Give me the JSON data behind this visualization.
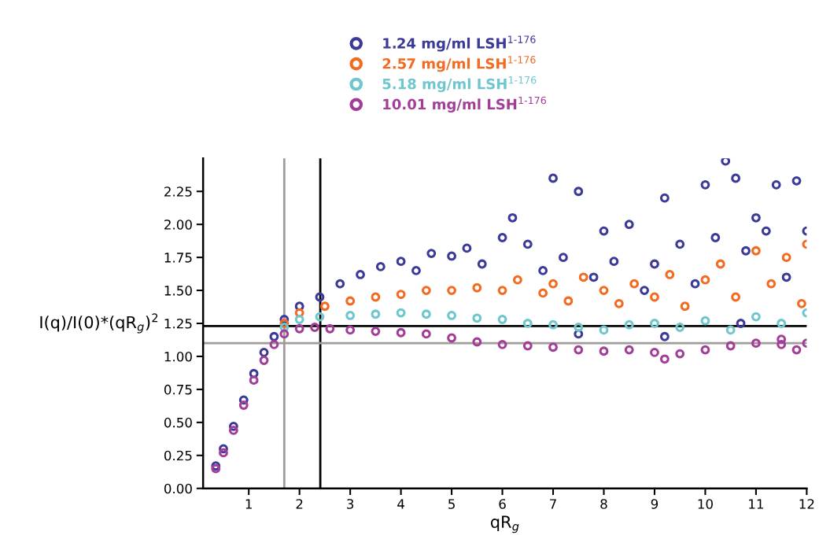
{
  "chart_data": {
    "type": "scatter",
    "xlabel": "qR$_{g}$",
    "ylabel": "I(q)/I(0)*(qR$_{g}$)$^{2}$",
    "xlim": [
      0.1,
      12
    ],
    "xticks": [
      1,
      2,
      3,
      4,
      5,
      6,
      7,
      8,
      9,
      10,
      11,
      12
    ],
    "ylim": [
      0,
      2.5
    ],
    "yticks": [
      {
        "value": 0,
        "label": "0.00"
      },
      0.25,
      {
        "value": 0.5,
        "label": "0.50"
      },
      0.75,
      {
        "value": 1,
        "label": "1.00"
      },
      1.25,
      {
        "value": 1.5,
        "label": "1.50"
      },
      1.75,
      {
        "value": 2,
        "label": "2.00"
      },
      2.25
    ],
    "grid": false,
    "legend": "top",
    "marker": "circle",
    "ref_lines": [
      {
        "axis": "x",
        "value": 1.7,
        "color": "#a09c98"
      },
      {
        "axis": "x",
        "value": 2.41,
        "color": "#000000"
      },
      {
        "axis": "y",
        "value": 1.1,
        "color": "#a09c98"
      },
      {
        "axis": "y",
        "value": 1.23,
        "color": "#000000"
      }
    ],
    "series": [
      {
        "name": "1.24 mg/ml LSH$^{1-176}$",
        "color": "#3b3a98",
        "x": [
          0.35,
          0.5,
          0.7,
          0.9,
          1.1,
          1.3,
          1.5,
          1.7,
          2.0,
          2.4,
          2.8,
          3.2,
          3.6,
          4.0,
          4.3,
          4.6,
          5.0,
          5.3,
          5.6,
          6.0,
          6.2,
          6.5,
          6.8,
          7.0,
          7.2,
          7.5,
          7.5,
          7.8,
          8.0,
          8.2,
          8.5,
          8.8,
          9.0,
          9.2,
          9.2,
          9.5,
          9.8,
          10.0,
          10.2,
          10.4,
          10.6,
          10.7,
          10.8,
          11.0,
          11.2,
          11.4,
          11.6,
          11.8,
          12.0
        ],
        "values": [
          0.17,
          0.3,
          0.47,
          0.67,
          0.87,
          1.03,
          1.15,
          1.28,
          1.38,
          1.45,
          1.55,
          1.62,
          1.68,
          1.72,
          1.65,
          1.78,
          1.76,
          1.82,
          1.7,
          1.9,
          2.05,
          1.85,
          1.65,
          2.35,
          1.75,
          2.25,
          1.17,
          1.6,
          1.95,
          1.72,
          2.0,
          1.5,
          1.7,
          2.2,
          1.15,
          1.85,
          1.55,
          2.3,
          1.9,
          2.48,
          2.35,
          1.25,
          1.8,
          2.05,
          1.95,
          2.3,
          1.6,
          2.33,
          1.95
        ]
      },
      {
        "name": "2.57 mg/ml LSH$^{1-176}$",
        "color": "#f26b21",
        "x": [
          1.7,
          2.0,
          2.5,
          3.0,
          3.5,
          4.0,
          4.5,
          5.0,
          5.5,
          6.0,
          6.3,
          6.8,
          7.0,
          7.3,
          7.6,
          8.0,
          8.3,
          8.6,
          9.0,
          9.3,
          9.6,
          10.0,
          10.3,
          10.6,
          11.0,
          11.3,
          11.6,
          11.9,
          12.0
        ],
        "values": [
          1.25,
          1.33,
          1.38,
          1.42,
          1.45,
          1.47,
          1.5,
          1.5,
          1.52,
          1.5,
          1.58,
          1.48,
          1.55,
          1.42,
          1.6,
          1.5,
          1.4,
          1.55,
          1.45,
          1.62,
          1.38,
          1.58,
          1.7,
          1.45,
          1.8,
          1.55,
          1.75,
          1.4,
          1.85
        ]
      },
      {
        "name": "5.18 mg/ml LSH$^{1-176}$",
        "color": "#6ec6cf",
        "x": [
          1.7,
          2.0,
          2.4,
          3.0,
          3.5,
          4.0,
          4.5,
          5.0,
          5.5,
          6.0,
          6.5,
          7.0,
          7.5,
          8.0,
          8.5,
          9.0,
          9.5,
          10.0,
          10.5,
          11.0,
          11.5,
          12.0
        ],
        "values": [
          1.22,
          1.28,
          1.3,
          1.31,
          1.32,
          1.33,
          1.32,
          1.31,
          1.29,
          1.28,
          1.25,
          1.24,
          1.22,
          1.2,
          1.24,
          1.25,
          1.22,
          1.27,
          1.2,
          1.3,
          1.25,
          1.33
        ]
      },
      {
        "name": "10.01 mg/ml LSH$^{1-176}$",
        "color": "#a23e98",
        "x": [
          0.35,
          0.5,
          0.7,
          0.9,
          1.1,
          1.3,
          1.5,
          1.7,
          2.0,
          2.3,
          2.6,
          3.0,
          3.5,
          4.0,
          4.5,
          5.0,
          5.5,
          6.0,
          6.5,
          7.0,
          7.5,
          8.0,
          8.5,
          9.0,
          9.2,
          9.5,
          10.0,
          10.5,
          11.0,
          11.5,
          11.5,
          11.8,
          12.0
        ],
        "values": [
          0.15,
          0.27,
          0.44,
          0.63,
          0.82,
          0.97,
          1.09,
          1.17,
          1.21,
          1.22,
          1.21,
          1.2,
          1.19,
          1.18,
          1.17,
          1.14,
          1.11,
          1.09,
          1.08,
          1.07,
          1.05,
          1.04,
          1.05,
          1.03,
          0.98,
          1.02,
          1.05,
          1.08,
          1.1,
          1.09,
          1.13,
          1.05,
          1.1
        ]
      }
    ]
  }
}
